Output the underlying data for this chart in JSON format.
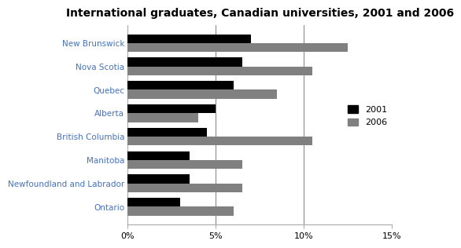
{
  "title": "International graduates, Canadian universities, 2001 and 2006",
  "categories": [
    "New Brunswick",
    "Nova Scotia",
    "Quebec",
    "Alberta",
    "British Columbia",
    "Manitoba",
    "Newfoundland and Labrador",
    "Ontario"
  ],
  "values_2001": [
    7.0,
    6.5,
    6.0,
    5.0,
    4.5,
    3.5,
    3.5,
    3.0
  ],
  "values_2006": [
    12.5,
    10.5,
    8.5,
    4.0,
    10.5,
    6.5,
    6.5,
    6.0
  ],
  "color_2001": "#000000",
  "color_2006": "#808080",
  "legend_labels": [
    "2001",
    "2006"
  ],
  "xlim": [
    0,
    15
  ],
  "xtick_values": [
    0,
    5,
    10,
    15
  ],
  "xtick_labels": [
    "0%",
    "5%",
    "10%",
    "15%"
  ],
  "grid_lines": [
    5,
    10
  ],
  "title_fontsize": 10,
  "label_color": "#4472C4",
  "label_fontsize": 7.5,
  "tick_fontsize": 8,
  "bar_height": 0.38,
  "background_color": "#ffffff"
}
